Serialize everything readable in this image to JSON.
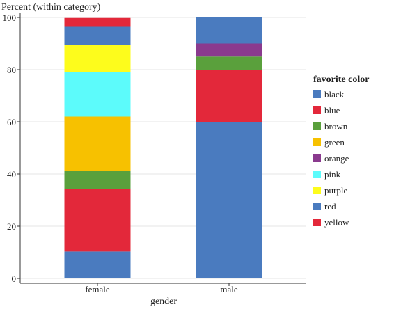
{
  "chart_data": {
    "type": "bar",
    "stacked": true,
    "ylabel": "Percent (within category)",
    "xlabel": "gender",
    "ylim": [
      0,
      100
    ],
    "yticks": [
      0,
      20,
      40,
      60,
      80,
      100
    ],
    "categories": [
      "female",
      "male"
    ],
    "legend": {
      "title": "favorite color",
      "placement": "right"
    },
    "series": [
      {
        "name": "black",
        "color": "#4a7bbf",
        "values": [
          10.3,
          60
        ]
      },
      {
        "name": "blue",
        "color": "#e3283a",
        "values": [
          24.1,
          20
        ]
      },
      {
        "name": "brown",
        "color": "#5aa03c",
        "values": [
          6.9,
          5
        ]
      },
      {
        "name": "green",
        "color": "#f7c100",
        "values": [
          20.7,
          0
        ]
      },
      {
        "name": "orange",
        "color": "#8a3a8e",
        "values": [
          0,
          5
        ]
      },
      {
        "name": "pink",
        "color": "#5cfbfb",
        "values": [
          17.2,
          0
        ]
      },
      {
        "name": "purple",
        "color": "#fdfc1c",
        "values": [
          10.3,
          0
        ]
      },
      {
        "name": "red",
        "color": "#4a7bbf",
        "values": [
          6.9,
          10
        ]
      },
      {
        "name": "yellow",
        "color": "#e3283a",
        "values": [
          3.4,
          0
        ]
      }
    ]
  }
}
